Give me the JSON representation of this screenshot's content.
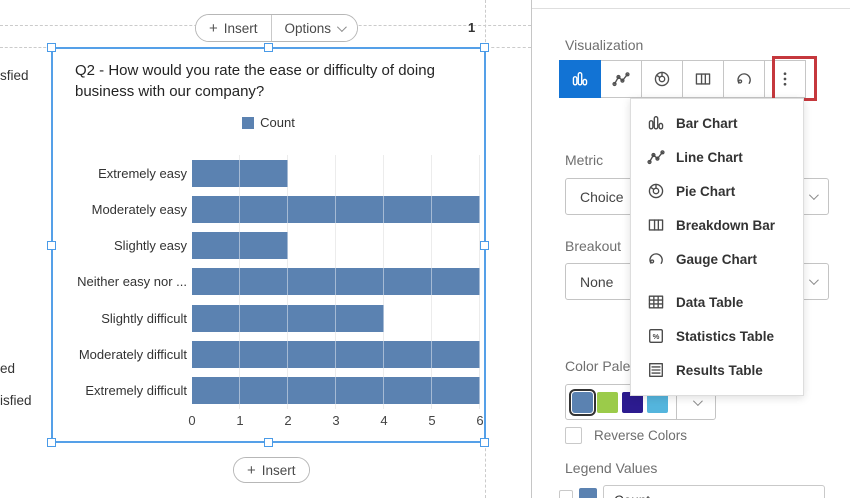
{
  "canvas": {
    "top_toolbar": {
      "insert": "Insert",
      "options": "Options"
    },
    "bottom_toolbar": {
      "insert": "Insert"
    },
    "page_number": "1",
    "clipped_left_labels": [
      "sfied",
      "ed",
      "isfied"
    ]
  },
  "chart_data": {
    "type": "bar",
    "orientation": "horizontal",
    "title": "Q2 - How would you rate the ease or difficulty of doing business with our company?",
    "legend": [
      "Count"
    ],
    "legend_position": "top",
    "categories": [
      "Extremely easy",
      "Moderately easy",
      "Slightly easy",
      "Neither easy nor ...",
      "Slightly difficult",
      "Moderately difficult",
      "Extremely difficult"
    ],
    "values": [
      2,
      6,
      2,
      6,
      4,
      6,
      6
    ],
    "xlim": [
      0,
      6
    ],
    "x_ticks": [
      "0",
      "1",
      "2",
      "3",
      "4",
      "5",
      "6"
    ],
    "grid": true,
    "bar_color": "#5b82b1"
  },
  "panel": {
    "visualization_label": "Visualization",
    "toolbar": [
      {
        "icon": "bar-chart",
        "selected": true
      },
      {
        "icon": "line-chart",
        "selected": false
      },
      {
        "icon": "pie-chart",
        "selected": false
      },
      {
        "icon": "breakdown-bar",
        "selected": false
      },
      {
        "icon": "gauge-chart",
        "selected": false
      },
      {
        "icon": "more",
        "selected": false
      }
    ],
    "menu_items": [
      {
        "icon": "bar-chart",
        "label": "Bar Chart"
      },
      {
        "icon": "line-chart",
        "label": "Line Chart"
      },
      {
        "icon": "pie-chart",
        "label": "Pie Chart"
      },
      {
        "icon": "breakdown-bar",
        "label": "Breakdown Bar"
      },
      {
        "icon": "gauge-chart",
        "label": "Gauge Chart"
      },
      {
        "icon": "data-table",
        "label": "Data Table"
      },
      {
        "icon": "statistics-table",
        "label": "Statistics Table"
      },
      {
        "icon": "results-table",
        "label": "Results Table"
      }
    ],
    "metric": {
      "label": "Metric",
      "value": "Choice"
    },
    "breakout": {
      "label": "Breakout",
      "value": "None"
    },
    "color_palette": {
      "label": "Color Palette",
      "colors": [
        "#5b82b1",
        "#9bcb4a",
        "#2c1b8f",
        "#54b5dd"
      ],
      "selected_index": 0
    },
    "reverse_colors_label": "Reverse Colors",
    "legend_values": {
      "label": "Legend Values",
      "first_value": "Count"
    }
  },
  "colors": {
    "accent_blue": "#1273d4",
    "selection_blue": "#55a0e8",
    "annotation_red": "#c5383d",
    "bar_blue": "#5b82b1"
  }
}
